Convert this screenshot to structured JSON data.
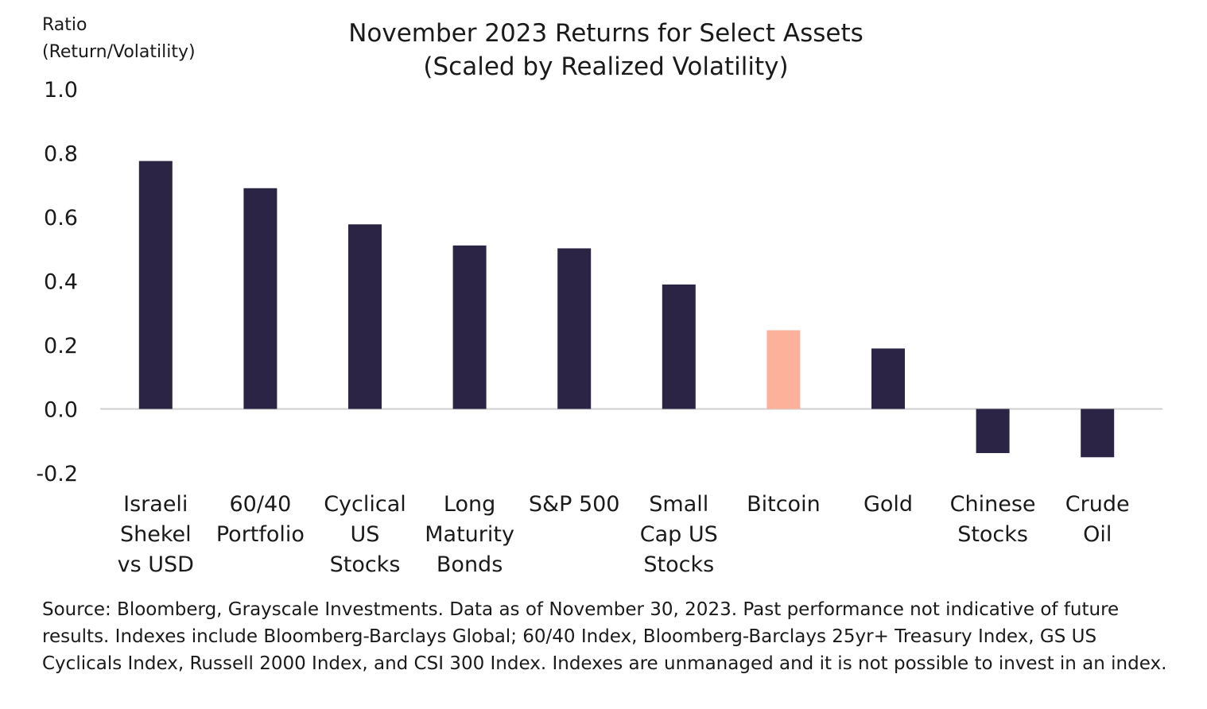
{
  "chart_data": {
    "type": "bar",
    "title": [
      "November 2023 Returns for Select Assets",
      "(Scaled by Realized Volatility)"
    ],
    "ylabel": [
      "Ratio",
      "(Return/Volatility)"
    ],
    "ylim": [
      -0.2,
      1.0
    ],
    "yticks": [
      "1.0",
      "0.8",
      "0.6",
      "0.4",
      "0.2",
      "0.0",
      "-0.2"
    ],
    "ytick_values": [
      1.0,
      0.8,
      0.6,
      0.4,
      0.2,
      0.0,
      -0.2
    ],
    "grid": false,
    "categories": [
      [
        "Israeli",
        "Shekel",
        "vs USD"
      ],
      [
        "60/40",
        "Portfolio"
      ],
      [
        "Cyclical",
        "US",
        "Stocks"
      ],
      [
        "Long",
        "Maturity",
        "Bonds"
      ],
      [
        "S&P 500"
      ],
      [
        "Small",
        "Cap US",
        "Stocks"
      ],
      [
        "Bitcoin"
      ],
      [
        "Gold"
      ],
      [
        "Chinese",
        "Stocks"
      ],
      [
        "Crude",
        "Oil"
      ]
    ],
    "values": [
      0.775,
      0.69,
      0.577,
      0.511,
      0.502,
      0.389,
      0.246,
      0.189,
      -0.138,
      -0.151
    ],
    "colors": [
      "#2b2445",
      "#2b2445",
      "#2b2445",
      "#2b2445",
      "#2b2445",
      "#2b2445",
      "#fdb19b",
      "#2b2445",
      "#2b2445",
      "#2b2445"
    ],
    "highlight": "Bitcoin"
  },
  "footer": {
    "source": "Source: Bloomberg, Grayscale Investments. Data as of November 30, 2023. Past performance not indicative of future results. Indexes include Bloomberg-Barclays Global; 60/40 Index, Bloomberg-Barclays 25yr+ Treasury Index, GS US Cyclicals Index, Russell 2000 Index, and CSI 300 Index. Indexes are unmanaged and it is not possible to invest in an index."
  }
}
